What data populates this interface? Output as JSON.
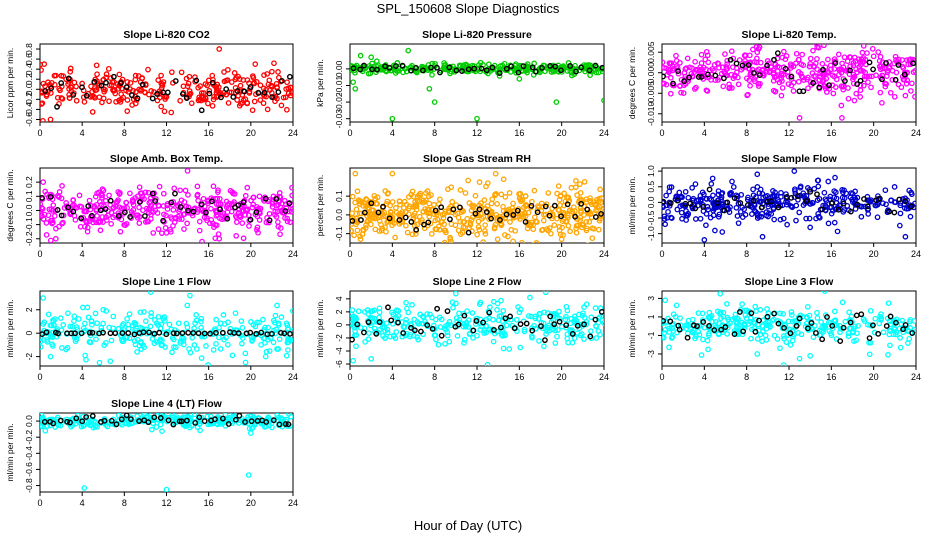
{
  "title": "SPL_150608  Slope Diagnostics",
  "xlabel": "Hour of Day (UTC)",
  "chart_data": [
    {
      "type": "scatter",
      "title": "Slope Li-820 CO2",
      "ylabel": "Licor ppm per min.",
      "xlim": [
        0,
        24
      ],
      "ylim": [
        -0.65,
        0.9
      ],
      "yticks": [
        "-0.6",
        "-0.4",
        "-0.2",
        "0.0",
        "0.2",
        "0.4",
        "0.6",
        "0.8"
      ],
      "ytick_values": [
        -0.6,
        -0.4,
        -0.2,
        0,
        0.2,
        0.4,
        0.6,
        0.8
      ],
      "color": "#ff0000",
      "spread": 0.18,
      "n_color": 300,
      "n_black": 40,
      "outliers": [
        [
          0.4,
          0.5
        ],
        [
          1,
          -0.6
        ],
        [
          16.5,
          -0.15
        ],
        [
          17,
          0.8
        ],
        [
          22,
          0.35
        ],
        [
          5,
          -0.45
        ]
      ]
    },
    {
      "type": "scatter",
      "title": "Slope Li-820 Pressure",
      "ylabel": "kPa per min.",
      "xlim": [
        0,
        24
      ],
      "ylim": [
        -0.032,
        0.015
      ],
      "yticks": [
        "-0.03",
        "-0.02",
        "-0.01",
        "0.00"
      ],
      "ytick_values": [
        -0.03,
        -0.02,
        -0.01,
        0
      ],
      "color": "#00cc00",
      "spread": 0.0015,
      "n_color": 300,
      "n_black": 40,
      "outliers": [
        [
          0.3,
          -0.008
        ],
        [
          0.5,
          -0.012
        ],
        [
          4,
          -0.03
        ],
        [
          7.5,
          -0.012
        ],
        [
          8,
          -0.02
        ],
        [
          12,
          -0.03
        ],
        [
          16,
          -0.006
        ],
        [
          19.5,
          -0.02
        ],
        [
          24,
          -0.019
        ],
        [
          1,
          0.008
        ],
        [
          2,
          0.007
        ],
        [
          5.5,
          0.011
        ]
      ]
    },
    {
      "type": "scatter",
      "title": "Slope Li-820 Temp.",
      "ylabel": "degrees C per min.",
      "xlim": [
        0,
        24
      ],
      "ylim": [
        -0.012,
        0.007
      ],
      "yticks": [
        "-0.010",
        "-0.005",
        "0.000",
        "0.005"
      ],
      "ytick_values": [
        -0.01,
        -0.005,
        0,
        0.005
      ],
      "color": "#ff00ff",
      "spread": 0.0028,
      "n_color": 420,
      "n_black": 40,
      "outliers": [
        [
          13,
          -0.011
        ],
        [
          17,
          -0.011
        ],
        [
          9,
          0.005
        ],
        [
          20,
          0.004
        ]
      ]
    },
    {
      "type": "scatter",
      "title": "Slope Amb. Box Temp.",
      "ylabel": "degrees C per min.",
      "xlim": [
        0,
        24
      ],
      "ylim": [
        -0.23,
        0.3
      ],
      "yticks": [
        "-0.2",
        "-0.1",
        "0.0",
        "0.1",
        "0.2"
      ],
      "ytick_values": [
        -0.2,
        -0.1,
        0,
        0.1,
        0.2
      ],
      "color": "#ff00ff",
      "spread": 0.075,
      "n_color": 420,
      "n_black": 40,
      "outliers": [
        [
          14,
          0.28
        ],
        [
          0.3,
          0.2
        ],
        [
          1.5,
          -0.2
        ],
        [
          17,
          -0.2
        ]
      ]
    },
    {
      "type": "scatter",
      "title": "Slope Gas Stream RH",
      "ylabel": "percent per min.",
      "xlim": [
        0,
        24
      ],
      "ylim": [
        -0.15,
        0.25
      ],
      "yticks": [
        "-0.1",
        "0.0",
        "0.1"
      ],
      "ytick_values": [
        -0.1,
        0,
        0.1
      ],
      "color": "#ffa500",
      "spread": 0.07,
      "n_color": 520,
      "n_black": 40,
      "outliers": [
        [
          0.5,
          0.22
        ],
        [
          4,
          0.22
        ],
        [
          1,
          -0.13
        ],
        [
          20,
          -0.13
        ]
      ]
    },
    {
      "type": "scatter",
      "title": "Slope Sample Flow",
      "ylabel": "ml/min per min.",
      "xlim": [
        0,
        24
      ],
      "ylim": [
        -1.3,
        1.1
      ],
      "yticks": [
        "-1.0",
        "-0.5",
        "0.0",
        "0.5",
        "1.0"
      ],
      "ytick_values": [
        -1,
        -0.5,
        0,
        0.5,
        1
      ],
      "color": "#0000cc",
      "spread": 0.28,
      "n_color": 360,
      "n_black": 40,
      "outliers": [
        [
          4,
          -1.2
        ],
        [
          5,
          -0.9
        ],
        [
          9,
          0.9
        ],
        [
          12.5,
          1.0
        ],
        [
          9.5,
          -1.1
        ],
        [
          14,
          -0.8
        ],
        [
          0.3,
          -0.7
        ],
        [
          23,
          -1.1
        ]
      ]
    },
    {
      "type": "scatter",
      "title": "Slope Line 1 Flow",
      "ylabel": "ml/min per min.",
      "xlim": [
        0,
        24
      ],
      "ylim": [
        -2.8,
        3.6
      ],
      "yticks": [
        "-2",
        "0",
        "2"
      ],
      "ytick_values": [
        -2,
        0,
        2
      ],
      "color": "#00ffff",
      "spread": 0.9,
      "n_color": 300,
      "n_black": 45,
      "black_spread": 0.05,
      "outliers": [
        [
          10.5,
          3.5
        ],
        [
          0.3,
          3.0
        ],
        [
          4.5,
          2.2
        ],
        [
          19.5,
          -2.5
        ],
        [
          1,
          -2
        ],
        [
          6,
          2
        ]
      ]
    },
    {
      "type": "scatter",
      "title": "Slope Line 2 Flow",
      "ylabel": "ml/min per min.",
      "xlim": [
        0,
        24
      ],
      "ylim": [
        -6.3,
        5.2
      ],
      "yticks": [
        "-6",
        "-4",
        "-2",
        "0",
        "2",
        "4"
      ],
      "ytick_values": [
        -6,
        -4,
        -2,
        0,
        2,
        4
      ],
      "color": "#00ffff",
      "spread": 1.5,
      "n_color": 320,
      "n_black": 45,
      "outliers": [
        [
          0.3,
          -5.5
        ],
        [
          13,
          -6.1
        ],
        [
          17,
          4.2
        ],
        [
          18.5,
          5.0
        ],
        [
          2,
          -5.2
        ],
        [
          10,
          4.8
        ]
      ]
    },
    {
      "type": "scatter",
      "title": "Slope Line 3 Flow",
      "ylabel": "ml/min per min.",
      "xlim": [
        0,
        24
      ],
      "ylim": [
        -4.3,
        3.8
      ],
      "yticks": [
        "-3",
        "-1",
        "1",
        "3"
      ],
      "ytick_values": [
        -3,
        -1,
        1,
        3
      ],
      "color": "#00ffff",
      "spread": 1.0,
      "n_color": 320,
      "n_black": 45,
      "outliers": [
        [
          11.5,
          -4.2
        ],
        [
          13,
          -3.5
        ],
        [
          14,
          -3.2
        ],
        [
          0.3,
          2.8
        ],
        [
          5.5,
          3.5
        ],
        [
          9,
          -3
        ]
      ]
    },
    {
      "type": "scatter",
      "title": "Slope Line 4 (LT) Flow",
      "ylabel": "ml/min per min.",
      "xlim": [
        0,
        24
      ],
      "ylim": [
        -0.88,
        0.1
      ],
      "yticks": [
        "-0.8",
        "-0.6",
        "-0.4",
        "-0.2",
        "0.0"
      ],
      "ytick_values": [
        -0.8,
        -0.6,
        -0.4,
        -0.2,
        0
      ],
      "color": "#00ffff",
      "spread": 0.045,
      "n_color": 300,
      "n_black": 45,
      "outliers": [
        [
          4.2,
          -0.83
        ],
        [
          12,
          -0.85
        ],
        [
          19.8,
          -0.67
        ],
        [
          20,
          -0.15
        ],
        [
          0.5,
          -0.12
        ]
      ]
    }
  ],
  "xticks": [
    "0",
    "4",
    "8",
    "12",
    "16",
    "20",
    "24"
  ],
  "xtick_values": [
    0,
    4,
    8,
    12,
    16,
    20,
    24
  ]
}
